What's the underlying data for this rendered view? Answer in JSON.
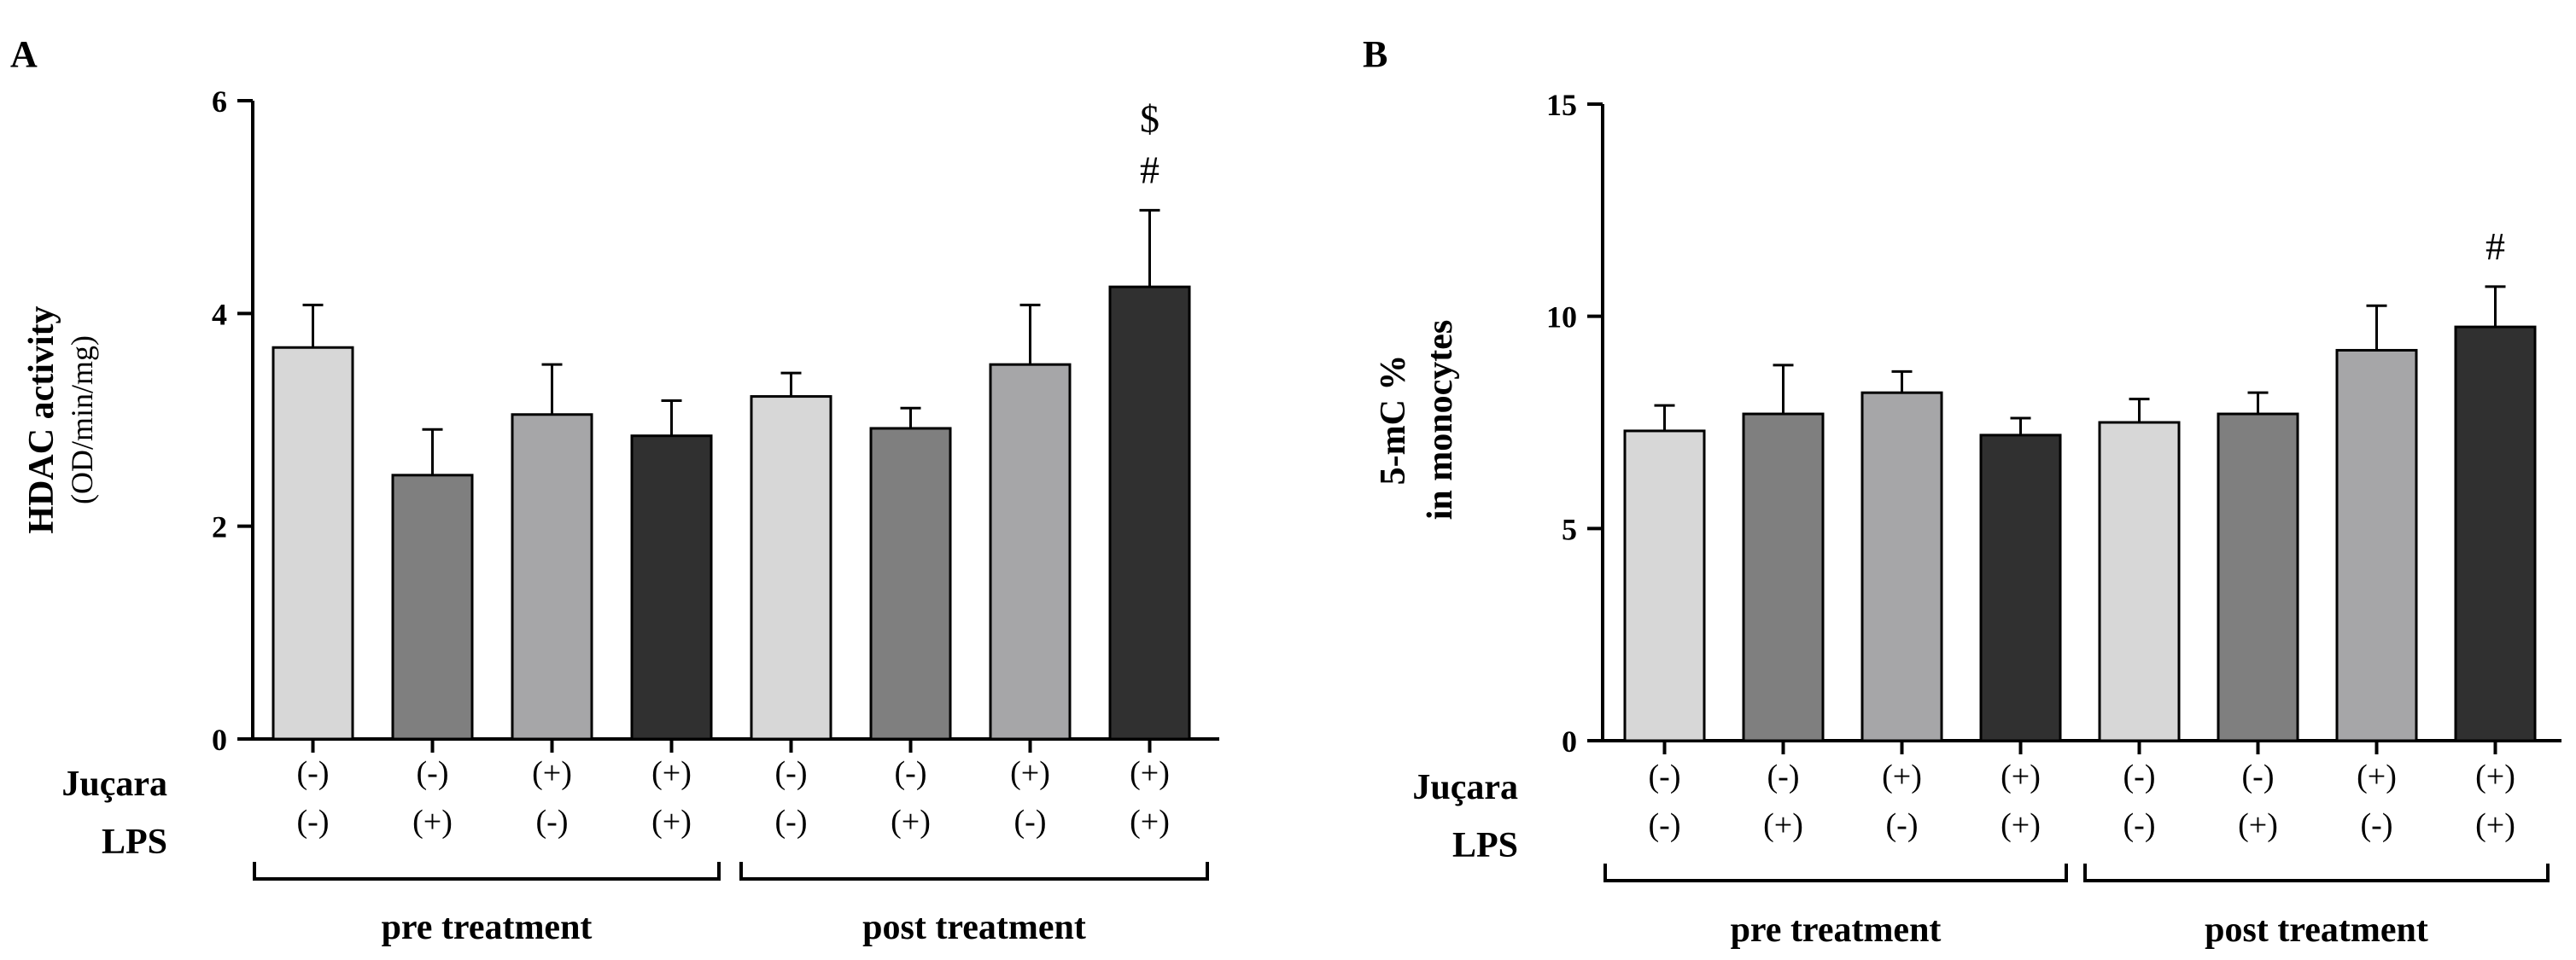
{
  "chart_data": [
    {
      "type": "bar",
      "panel": "A",
      "ylabel": "HDAC activity",
      "ylabel_sub": "(OD/min/mg)",
      "ylim": [
        0,
        6
      ],
      "yticks": [
        0,
        2,
        4,
        6
      ],
      "values": [
        3.68,
        2.48,
        3.05,
        2.85,
        3.22,
        2.92,
        3.52,
        4.25
      ],
      "errors": [
        0.4,
        0.43,
        0.47,
        0.33,
        0.22,
        0.19,
        0.56,
        0.72
      ],
      "colors": [
        "#d7d7d7",
        "#7f7f7f",
        "#a6a6a8",
        "#303030",
        "#d7d7d7",
        "#7f7f7f",
        "#a6a6a8",
        "#303030"
      ],
      "jucara": [
        "(-)",
        "(-)",
        "(+)",
        "(+)",
        "(-)",
        "(-)",
        "(+)",
        "(+)"
      ],
      "lps": [
        "(-)",
        "(+)",
        "(-)",
        "(+)",
        "(-)",
        "(+)",
        "(-)",
        "(+)"
      ],
      "annotations": [
        {
          "bar": 7,
          "lines": [
            "$",
            "#"
          ]
        }
      ],
      "row_labels": [
        "Juçara",
        "LPS"
      ],
      "groups": [
        "pre treatment",
        "post treatment"
      ]
    },
    {
      "type": "bar",
      "panel": "B",
      "ylabel": "5-mC %",
      "ylabel_sub": "in monocytes",
      "ylim": [
        0,
        15
      ],
      "yticks": [
        0,
        5,
        10,
        15
      ],
      "values": [
        7.3,
        7.7,
        8.2,
        7.2,
        7.5,
        7.7,
        9.2,
        9.75
      ],
      "errors": [
        0.6,
        1.15,
        0.5,
        0.4,
        0.55,
        0.5,
        1.05,
        0.95
      ],
      "colors": [
        "#d7d7d7",
        "#7f7f7f",
        "#a6a6a8",
        "#303030",
        "#d7d7d7",
        "#7f7f7f",
        "#a6a6a8",
        "#303030"
      ],
      "jucara": [
        "(-)",
        "(-)",
        "(+)",
        "(+)",
        "(-)",
        "(-)",
        "(+)",
        "(+)"
      ],
      "lps": [
        "(-)",
        "(+)",
        "(-)",
        "(+)",
        "(-)",
        "(+)",
        "(-)",
        "(+)"
      ],
      "annotations": [
        {
          "bar": 7,
          "lines": [
            "#"
          ]
        }
      ],
      "row_labels": [
        "Juçara",
        "LPS"
      ],
      "groups": [
        "pre treatment",
        "post treatment"
      ]
    }
  ]
}
